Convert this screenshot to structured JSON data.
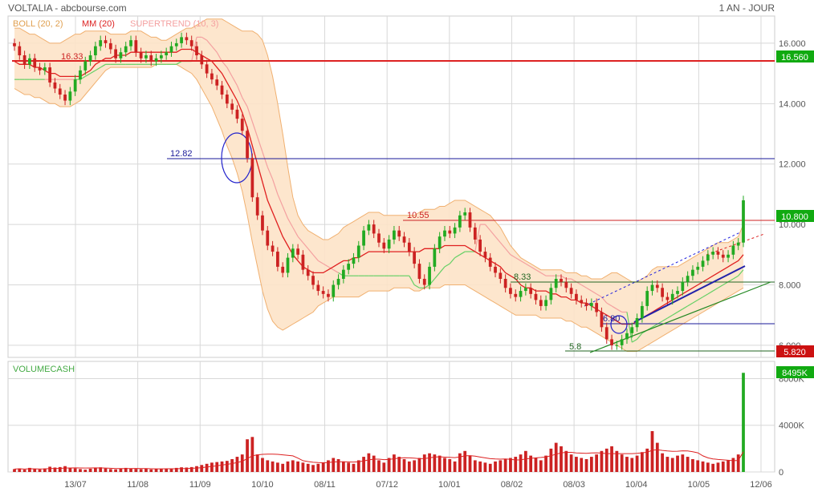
{
  "header": {
    "title": "VOLTALIA - abcbourse.com",
    "period": "1 AN - JOUR"
  },
  "legend": {
    "boll": "BOLL (20, 2)",
    "mm": "MM (20)",
    "supertrend": "SUPERTREND (10, 3)",
    "volume": "VOLUMECASH"
  },
  "colors": {
    "boll_fill": "#fde3c8",
    "boll_line": "#f0b070",
    "mm": "#e02020",
    "supertrend_up": "#66d066",
    "supertrend_down": "#f4a0a0",
    "up_candle": "#22aa22",
    "down_candle": "#cc2222",
    "volume_bar": "#cc2222",
    "grid": "#d8d8d8",
    "resistance": "#dd2222",
    "support_blue": "#1a1aaa",
    "trend_green": "#228822"
  },
  "chart_data": [
    {
      "type": "candlestick",
      "ylim": [
        5.6,
        16.9
      ],
      "yticks": [
        6.0,
        8.0,
        10.0,
        12.0,
        14.0,
        16.0
      ],
      "ytick_labels": [
        "6.000",
        "8.000",
        "10.000",
        "12.000",
        "14.000",
        "16.000"
      ],
      "xtick_labels": [
        "13/07",
        "11/08",
        "11/09",
        "10/10",
        "08/11",
        "07/12",
        "10/01",
        "08/02",
        "08/03",
        "10/04",
        "10/05",
        "12/06"
      ],
      "last_price": "10.800",
      "price_badges": [
        "16.560",
        "10.800",
        "5.820"
      ],
      "annotations": [
        "16.33",
        "12.82",
        "10.55",
        "8.33",
        "6.80",
        "5.8"
      ],
      "close": [
        15.9,
        15.6,
        15.3,
        15.5,
        15.2,
        15.1,
        15.2,
        14.7,
        14.5,
        14.3,
        14.1,
        14.4,
        14.8,
        15.1,
        15.4,
        15.6,
        15.9,
        16.1,
        16.0,
        15.8,
        15.5,
        15.7,
        15.9,
        16.1,
        15.7,
        15.5,
        15.6,
        15.4,
        15.5,
        15.6,
        15.7,
        15.9,
        16.0,
        16.2,
        16.1,
        15.9,
        15.6,
        15.3,
        15.0,
        14.8,
        14.6,
        14.3,
        14.0,
        13.8,
        13.5,
        13.1,
        12.2,
        10.9,
        10.3,
        9.8,
        9.3,
        9.1,
        8.6,
        8.4,
        8.9,
        9.2,
        9.0,
        8.5,
        8.3,
        8.0,
        7.8,
        7.7,
        7.6,
        8.0,
        8.2,
        8.5,
        8.7,
        8.9,
        9.3,
        9.8,
        10.0,
        9.7,
        9.4,
        9.2,
        9.5,
        9.8,
        9.6,
        9.4,
        9.1,
        8.7,
        8.2,
        8.0,
        8.6,
        9.2,
        9.6,
        9.8,
        9.7,
        9.9,
        10.3,
        10.4,
        9.9,
        9.5,
        9.1,
        8.9,
        8.6,
        8.4,
        8.2,
        7.9,
        7.7,
        7.6,
        7.8,
        7.9,
        7.7,
        7.5,
        7.3,
        7.5,
        7.9,
        8.2,
        8.1,
        7.9,
        7.7,
        7.5,
        7.4,
        7.3,
        7.4,
        7.1,
        6.6,
        6.2,
        6.0,
        6.0,
        6.2,
        6.4,
        6.6,
        6.9,
        7.3,
        7.8,
        8.0,
        7.9,
        7.6,
        7.5,
        7.7,
        7.8,
        8.1,
        8.3,
        8.5,
        8.6,
        8.8,
        9.0,
        9.1,
        9.0,
        8.9,
        9.0,
        9.3,
        9.4,
        10.8
      ],
      "bollinger": {
        "upper": [
          16.5,
          16.5,
          16.4,
          16.3,
          16.3,
          16.2,
          16.1,
          16.0,
          16.0,
          16.0,
          16.1,
          16.2,
          16.3,
          16.3,
          16.4,
          16.4,
          16.4,
          16.4,
          16.4,
          16.3,
          16.3,
          16.3,
          16.3,
          16.4,
          16.4,
          16.4,
          16.3,
          16.2,
          16.2,
          16.1,
          16.1,
          16.2,
          16.3,
          16.4,
          16.5,
          16.5,
          16.6,
          16.7,
          16.8,
          16.8,
          16.8,
          16.8,
          16.7,
          16.6,
          16.5,
          16.4,
          16.4,
          16.4,
          16.3,
          16.1,
          15.6,
          14.9,
          14.0,
          13.0,
          11.9,
          10.9,
          10.3,
          10.0,
          9.8,
          9.7,
          9.6,
          9.5,
          9.5,
          9.6,
          9.7,
          9.9,
          10.0,
          10.1,
          10.2,
          10.3,
          10.4,
          10.4,
          10.4,
          10.3,
          10.3,
          10.3,
          10.3,
          10.3,
          10.3,
          10.3,
          10.4,
          10.5,
          10.5,
          10.5,
          10.6,
          10.6,
          10.7,
          10.8,
          10.8,
          10.8,
          10.7,
          10.6,
          10.5,
          10.4,
          10.3,
          10.1,
          9.9,
          9.6,
          9.3,
          9.1,
          8.9,
          8.8,
          8.7,
          8.6,
          8.5,
          8.5,
          8.5,
          8.5,
          8.5,
          8.4,
          8.4,
          8.4,
          8.3,
          8.3,
          8.2,
          8.2,
          8.2,
          8.3,
          8.4,
          8.4,
          8.3,
          8.2,
          8.1,
          8.1,
          8.2,
          8.3,
          8.5,
          8.6,
          8.6,
          8.6,
          8.6,
          8.6,
          8.7,
          8.8,
          8.9,
          9.0,
          9.1,
          9.2,
          9.3,
          9.4,
          9.4,
          9.4,
          9.5,
          9.6,
          10.0
        ],
        "lower": [
          14.5,
          14.4,
          14.3,
          14.3,
          14.2,
          14.2,
          14.1,
          14.0,
          14.0,
          13.9,
          13.9,
          13.9,
          14.0,
          14.1,
          14.3,
          14.5,
          14.7,
          14.9,
          15.1,
          15.2,
          15.2,
          15.2,
          15.2,
          15.2,
          15.2,
          15.2,
          15.2,
          15.2,
          15.3,
          15.3,
          15.3,
          15.3,
          15.3,
          15.2,
          15.1,
          15.0,
          14.8,
          14.5,
          14.2,
          13.9,
          13.5,
          13.1,
          12.6,
          12.2,
          11.7,
          11.1,
          10.3,
          9.4,
          8.6,
          7.8,
          7.2,
          6.8,
          6.6,
          6.5,
          6.6,
          6.7,
          6.8,
          6.9,
          7.0,
          7.1,
          7.3,
          7.4,
          7.5,
          7.6,
          7.6,
          7.6,
          7.6,
          7.6,
          7.6,
          7.7,
          7.8,
          7.8,
          7.8,
          7.8,
          7.8,
          7.9,
          7.9,
          7.9,
          7.9,
          7.8,
          7.8,
          7.9,
          7.9,
          7.9,
          7.9,
          8.0,
          8.0,
          8.0,
          8.0,
          8.0,
          7.9,
          7.8,
          7.7,
          7.6,
          7.5,
          7.4,
          7.3,
          7.2,
          7.1,
          7.0,
          7.0,
          7.0,
          7.0,
          7.0,
          6.9,
          6.9,
          6.9,
          6.9,
          6.9,
          6.8,
          6.8,
          6.7,
          6.6,
          6.6,
          6.5,
          6.4,
          6.3,
          6.2,
          6.1,
          6.0,
          5.9,
          5.8,
          5.8,
          5.8,
          5.9,
          6.0,
          6.1,
          6.2,
          6.3,
          6.4,
          6.5,
          6.6,
          6.7,
          6.8,
          6.9,
          7.0,
          7.1,
          7.2,
          7.3,
          7.4,
          7.5,
          7.6,
          7.7,
          7.8,
          7.9
        ]
      },
      "moving_average_20": [
        15.4,
        15.3,
        15.3,
        15.3,
        15.2,
        15.2,
        15.1,
        15.0,
        15.0,
        14.9,
        14.9,
        14.9,
        14.9,
        14.9,
        15.0,
        15.1,
        15.3,
        15.4,
        15.5,
        15.5,
        15.6,
        15.6,
        15.6,
        15.7,
        15.7,
        15.7,
        15.7,
        15.7,
        15.7,
        15.7,
        15.7,
        15.7,
        15.7,
        15.8,
        15.8,
        15.8,
        15.7,
        15.6,
        15.5,
        15.4,
        15.2,
        15.0,
        14.7,
        14.4,
        14.1,
        13.7,
        13.2,
        12.6,
        12.0,
        11.4,
        10.8,
        10.4,
        10.0,
        9.6,
        9.3,
        9.0,
        8.8,
        8.6,
        8.5,
        8.4,
        8.4,
        8.4,
        8.5,
        8.6,
        8.7,
        8.8,
        8.8,
        8.9,
        8.9,
        9.0,
        9.1,
        9.1,
        9.1,
        9.1,
        9.1,
        9.1,
        9.1,
        9.1,
        9.1,
        9.1,
        9.1,
        9.2,
        9.2,
        9.2,
        9.2,
        9.3,
        9.3,
        9.3,
        9.3,
        9.3,
        9.2,
        9.1,
        9.0,
        8.9,
        8.8,
        8.7,
        8.6,
        8.4,
        8.3,
        8.2,
        8.0,
        7.9,
        7.9,
        7.8,
        7.8,
        7.8,
        7.7,
        7.7,
        7.6,
        7.6,
        7.5,
        7.5,
        7.4,
        7.4,
        7.3,
        7.2,
        7.1,
        7.0,
        6.9,
        6.8,
        6.7,
        6.7,
        6.7,
        6.8,
        6.9,
        7.0,
        7.1,
        7.2,
        7.3,
        7.4,
        7.5,
        7.6,
        7.7,
        7.8,
        7.9,
        8.0,
        8.1,
        8.2,
        8.3,
        8.4,
        8.5,
        8.6,
        8.7,
        8.8,
        9.0
      ],
      "supertrend": [
        14.8,
        14.8,
        14.8,
        14.8,
        14.8,
        14.8,
        14.8,
        14.8,
        14.8,
        14.8,
        14.8,
        14.8,
        14.8,
        14.8,
        14.9,
        15.0,
        15.1,
        15.2,
        15.3,
        15.3,
        15.3,
        15.3,
        15.3,
        15.3,
        15.3,
        15.3,
        15.3,
        15.3,
        15.3,
        15.3,
        15.3,
        15.3,
        15.3,
        15.4,
        15.4,
        15.4,
        16.2,
        16.2,
        16.1,
        15.9,
        15.7,
        15.4,
        15.2,
        14.9,
        14.6,
        14.2,
        13.9,
        13.4,
        12.9,
        12.4,
        11.9,
        11.5,
        11.0,
        10.6,
        10.2,
        9.9,
        9.6,
        9.4,
        9.2,
        9.0,
        8.8,
        8.7,
        8.6,
        8.5,
        8.4,
        8.3,
        8.3,
        8.3,
        8.3,
        8.3,
        8.3,
        8.3,
        8.3,
        8.3,
        8.3,
        8.3,
        8.3,
        8.3,
        8.3,
        8.0,
        7.9,
        7.9,
        8.0,
        8.2,
        8.4,
        8.6,
        8.7,
        8.9,
        9.0,
        9.1,
        9.1,
        9.1,
        10.0,
        10.0,
        9.8,
        9.6,
        9.4,
        9.2,
        9.0,
        8.9,
        8.8,
        8.7,
        8.6,
        8.5,
        8.4,
        8.3,
        8.3,
        8.3,
        8.3,
        8.2,
        8.2,
        8.1,
        8.0,
        7.9,
        7.8,
        7.7,
        7.6,
        7.4,
        7.3,
        7.2,
        7.1,
        7.1,
        6.1,
        6.2,
        6.4,
        6.5,
        6.6,
        6.7,
        6.8,
        6.9,
        7.0,
        7.1,
        7.2,
        7.3,
        7.4,
        7.5,
        7.6,
        7.7,
        7.8,
        7.9,
        8.0,
        8.1,
        8.2,
        8.3,
        8.5
      ]
    },
    {
      "type": "bar",
      "title": "VOLUMECASH",
      "unit": "K",
      "ylim": [
        0,
        9200
      ],
      "yticks": [
        0,
        4000,
        8000
      ],
      "ytick_labels": [
        "0",
        "4000K",
        "8000K"
      ],
      "last_value": "8495K",
      "values": [
        250,
        300,
        200,
        350,
        250,
        220,
        300,
        450,
        380,
        420,
        500,
        350,
        300,
        250,
        200,
        280,
        350,
        400,
        300,
        250,
        220,
        300,
        350,
        280,
        260,
        240,
        300,
        220,
        250,
        280,
        260,
        300,
        350,
        400,
        380,
        420,
        500,
        600,
        700,
        800,
        850,
        900,
        950,
        1100,
        1300,
        1500,
        2800,
        3000,
        1500,
        1200,
        1000,
        900,
        800,
        700,
        900,
        1000,
        900,
        800,
        700,
        600,
        700,
        800,
        1000,
        1200,
        1100,
        900,
        800,
        700,
        1000,
        1300,
        1600,
        1400,
        1000,
        800,
        1200,
        1500,
        1300,
        1100,
        900,
        1000,
        1200,
        1500,
        1600,
        1500,
        1400,
        1200,
        1100,
        900,
        1600,
        1800,
        1400,
        1000,
        900,
        800,
        700,
        900,
        1000,
        1100,
        1200,
        1300,
        1500,
        1800,
        1400,
        1200,
        1000,
        1400,
        2000,
        2500,
        2200,
        1800,
        1500,
        1300,
        1200,
        1100,
        1300,
        1500,
        1800,
        2000,
        2200,
        1800,
        1500,
        1300,
        1200,
        1400,
        1700,
        2000,
        3500,
        2500,
        1600,
        1300,
        1200,
        1400,
        1500,
        1300,
        1100,
        1000,
        900,
        800,
        700,
        800,
        900,
        1000,
        1200,
        1500,
        8495
      ]
    }
  ]
}
